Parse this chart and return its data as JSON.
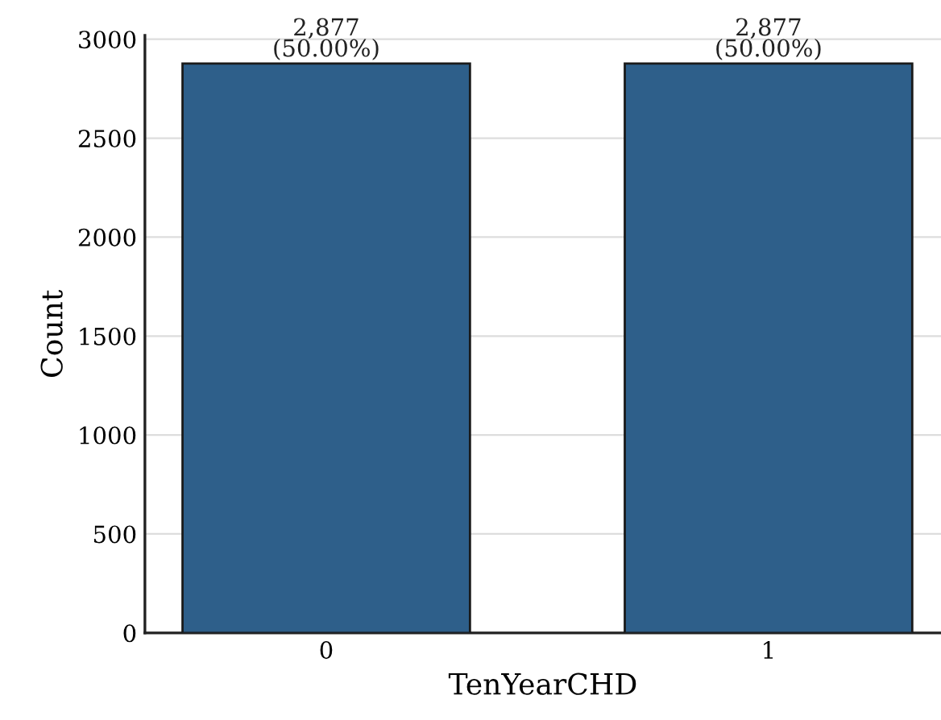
{
  "chart_data": {
    "type": "bar",
    "xlabel": "TenYearCHD",
    "ylabel": "Count",
    "categories": [
      "0",
      "1"
    ],
    "values": [
      2877,
      2877
    ],
    "color": "#2e5f8a",
    "value_labels": [
      "2,877\n(50.00%)",
      "2,877\n(50.00%)"
    ],
    "ylim": [
      0,
      3020
    ],
    "yticks": [
      0,
      500,
      1000,
      1500,
      2000,
      2500,
      3000
    ],
    "grid": "y"
  }
}
